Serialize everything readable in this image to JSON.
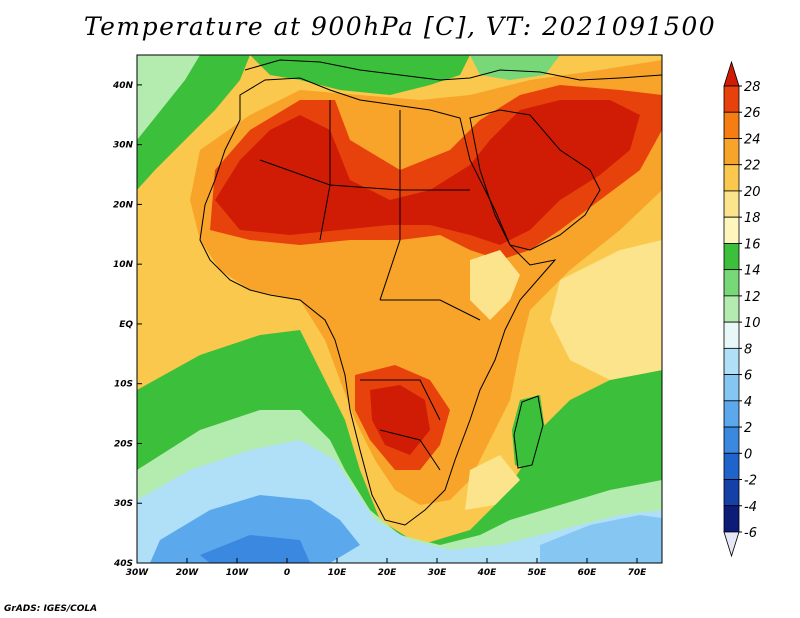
{
  "title": "Temperature at 900hPa [C], VT: 2021091500",
  "credit": "GrADS: IGES/COLA",
  "map": {
    "lon_range": [
      -30,
      75
    ],
    "lat_range": [
      -40,
      45
    ],
    "x_ticks": [
      {
        "lon": -30,
        "label": "30W"
      },
      {
        "lon": -20,
        "label": "20W"
      },
      {
        "lon": -10,
        "label": "10W"
      },
      {
        "lon": 0,
        "label": "0"
      },
      {
        "lon": 10,
        "label": "10E"
      },
      {
        "lon": 20,
        "label": "20E"
      },
      {
        "lon": 30,
        "label": "30E"
      },
      {
        "lon": 40,
        "label": "40E"
      },
      {
        "lon": 50,
        "label": "50E"
      },
      {
        "lon": 60,
        "label": "60E"
      },
      {
        "lon": 70,
        "label": "70E"
      }
    ],
    "y_ticks": [
      {
        "lat": 40,
        "label": "40N"
      },
      {
        "lat": 30,
        "label": "30N"
      },
      {
        "lat": 20,
        "label": "20N"
      },
      {
        "lat": 10,
        "label": "10N"
      },
      {
        "lat": 0,
        "label": "EQ"
      },
      {
        "lat": -10,
        "label": "10S"
      },
      {
        "lat": -20,
        "label": "20S"
      },
      {
        "lat": -30,
        "label": "30S"
      },
      {
        "lat": -40,
        "label": "40S"
      }
    ]
  },
  "colorbar": {
    "labels": [
      "28",
      "26",
      "24",
      "22",
      "20",
      "18",
      "16",
      "14",
      "12",
      "10",
      "8",
      "6",
      "4",
      "2",
      "0",
      "-2",
      "-4",
      "-6"
    ],
    "colors": [
      "#d01c04",
      "#e8420c",
      "#f67d12",
      "#f8a32a",
      "#fac84c",
      "#fce48c",
      "#fef6bc",
      "#3cc03c",
      "#78d878",
      "#b4ecb0",
      "#e8f8f8",
      "#b0e0f8",
      "#86c6f2",
      "#5ca8ec",
      "#3a88e0",
      "#1e64cc",
      "#1440a8",
      "#0c1c78",
      "#0a0a54",
      "#e6e6f6"
    ]
  },
  "palette": {
    "t28": "#d01c04",
    "t26": "#e8420c",
    "t24": "#f67d12",
    "t22": "#f8a32a",
    "t20": "#fac84c",
    "t18": "#fce48c",
    "t16": "#fef6bc",
    "t14": "#3cc03c",
    "t12": "#78d878",
    "t10": "#b4ecb0",
    "t8": "#e8f8f8",
    "t6": "#b0e0f8",
    "t4": "#86c6f2",
    "t2": "#5ca8ec",
    "t0": "#3a88e0",
    "tm2": "#1e64cc"
  }
}
